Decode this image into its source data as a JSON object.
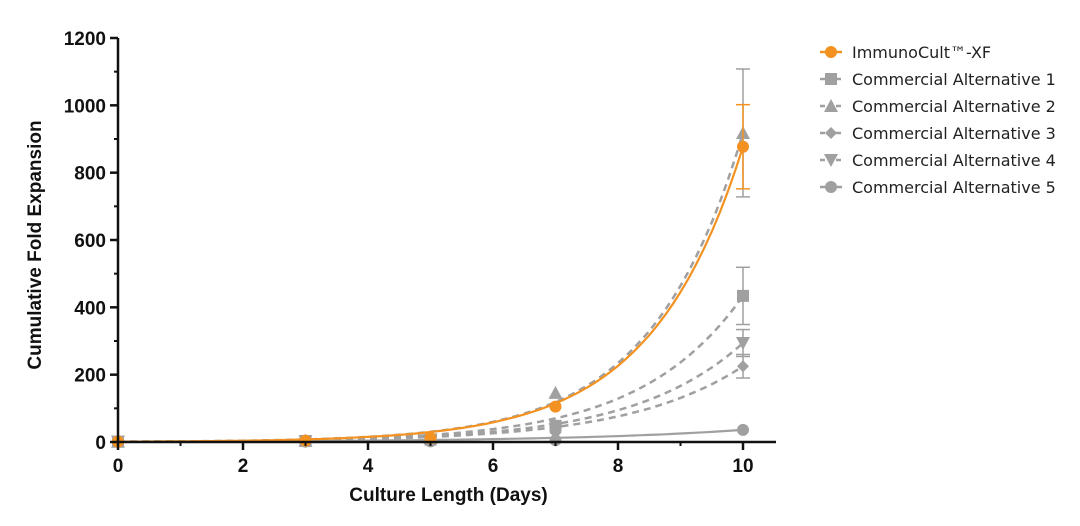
{
  "chart_data": {
    "type": "line",
    "xlabel": "Culture Length (Days)",
    "ylabel": "Cumulative Fold Expansion",
    "xlim": [
      0,
      10
    ],
    "ylim": [
      0,
      1200
    ],
    "x_ticks": [
      0,
      2,
      4,
      6,
      8,
      10
    ],
    "y_ticks": [
      0,
      200,
      400,
      600,
      800,
      1000,
      1200
    ],
    "x_tick_labels": [
      "0",
      "2",
      "4",
      "6",
      "8",
      "10"
    ],
    "y_tick_labels": [
      "0",
      "200",
      "400",
      "600",
      "800",
      "1000",
      "1200"
    ],
    "grid": false,
    "legend_position": "right",
    "series": [
      {
        "name": "ImmunoCult™-XF",
        "color": "#f39220",
        "marker": "circle",
        "line": "solid",
        "x": [
          0,
          3,
          5,
          7,
          10
        ],
        "y": [
          1,
          4,
          12,
          105,
          877
        ],
        "error": [
          0,
          0,
          0,
          0,
          125
        ]
      },
      {
        "name": "Commercial Alternative 1",
        "color": "#a0a0a0",
        "marker": "square",
        "line": "dashed",
        "x": [
          0,
          3,
          5,
          7,
          10
        ],
        "y": [
          1,
          3,
          7,
          48,
          434
        ],
        "error": [
          0,
          0,
          0,
          0,
          85
        ]
      },
      {
        "name": "Commercial Alternative 2",
        "color": "#a0a0a0",
        "marker": "triangle-up",
        "line": "dashed",
        "x": [
          0,
          3,
          5,
          7,
          10
        ],
        "y": [
          1,
          4,
          12,
          146,
          918
        ],
        "error": [
          0,
          0,
          0,
          0,
          190
        ]
      },
      {
        "name": "Commercial Alternative 3",
        "color": "#a0a0a0",
        "marker": "diamond",
        "line": "dashed",
        "x": [
          0,
          3,
          5,
          7,
          10
        ],
        "y": [
          1,
          2,
          5,
          28,
          225
        ],
        "error": [
          0,
          0,
          0,
          0,
          35
        ]
      },
      {
        "name": "Commercial Alternative 4",
        "color": "#a0a0a0",
        "marker": "triangle-down",
        "line": "dashed",
        "x": [
          0,
          3,
          5,
          7,
          10
        ],
        "y": [
          1,
          2,
          6,
          38,
          294
        ],
        "error": [
          0,
          0,
          0,
          0,
          40
        ]
      },
      {
        "name": "Commercial Alternative 5",
        "color": "#a0a0a0",
        "marker": "circle",
        "line": "solid",
        "x": [
          0,
          3,
          5,
          7,
          10
        ],
        "y": [
          1,
          1,
          2,
          5,
          36
        ],
        "error": [
          0,
          0,
          0,
          0,
          0
        ]
      }
    ]
  }
}
